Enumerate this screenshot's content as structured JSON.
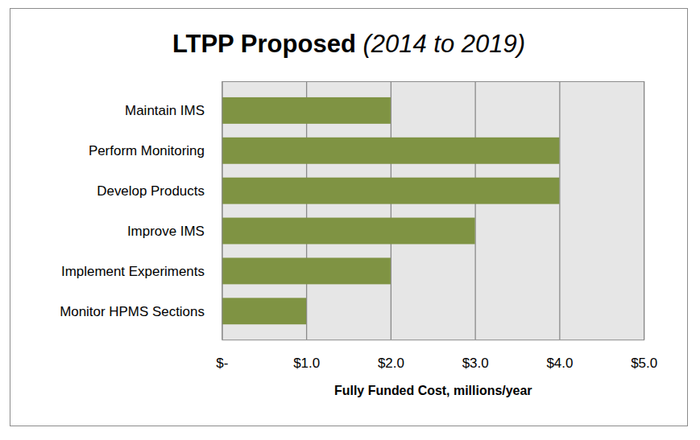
{
  "chart_data": {
    "type": "bar",
    "orientation": "horizontal",
    "title": "LTPP Proposed",
    "subtitle": "(2014 to 2019)",
    "categories": [
      "Maintain IMS",
      "Perform Monitoring",
      "Develop Products",
      "Improve IMS",
      "Implement Experiments",
      "Monitor HPMS Sections"
    ],
    "values": [
      2,
      4,
      4,
      3,
      2,
      1
    ],
    "color": "#7f9343",
    "x_label": "Fully Funded Cost, millions/year",
    "xlim": [
      0,
      5
    ],
    "xticks": [
      {
        "value": 0,
        "label": "$-"
      },
      {
        "value": 1,
        "label": "$1.0"
      },
      {
        "value": 2,
        "label": "$2.0"
      },
      {
        "value": 3,
        "label": "$3.0"
      },
      {
        "value": 4,
        "label": "$4.0"
      },
      {
        "value": 5,
        "label": "$5.0"
      }
    ],
    "grid": true
  }
}
